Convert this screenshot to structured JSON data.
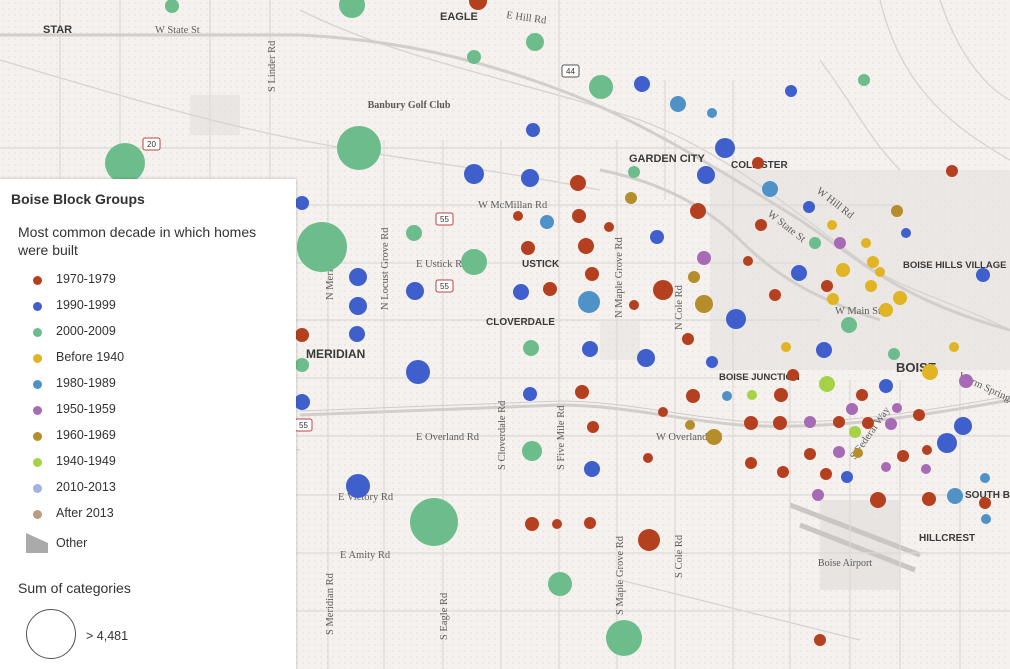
{
  "legend": {
    "title": "Boise Block Groups",
    "subtitle": "Most common decade in which homes were built",
    "categories": [
      {
        "label": "1970-1979",
        "color": "#b5401f"
      },
      {
        "label": "1990-1999",
        "color": "#3f5fcc"
      },
      {
        "label": "2000-2009",
        "color": "#6dbd8c"
      },
      {
        "label": "Before 1940",
        "color": "#e0b422"
      },
      {
        "label": "1980-1989",
        "color": "#4f92c8"
      },
      {
        "label": "1950-1959",
        "color": "#a66bb4"
      },
      {
        "label": "1960-1969",
        "color": "#b58e2b"
      },
      {
        "label": "1940-1949",
        "color": "#a5d246"
      },
      {
        "label": "2010-2013",
        "color": "#a2b3e3"
      },
      {
        "label": "After 2013",
        "color": "#bd9a80"
      }
    ],
    "other_label": "Other",
    "size_title": "Sum of categories",
    "size_label": "> 4,481"
  },
  "map": {
    "places": [
      "STAR",
      "EAGLE",
      "GARDEN CITY",
      "COLLISTER",
      "USTICK",
      "CLOVERDALE",
      "MERIDIAN",
      "BOISE JUNCTION",
      "BOISE HILLS VILLAGE",
      "BOISE",
      "SOUTH BOISE",
      "HILLCREST"
    ],
    "landmarks": [
      "Banbury Golf Club",
      "Boise Airport"
    ],
    "roads": [
      "W State St",
      "E Hill Rd",
      "S Linder Rd",
      "W McMillan Rd",
      "N Locust Grove Rd",
      "N Meridian Rd",
      "E Ustick Rd",
      "N Maple Grove Rd",
      "N Cole Rd",
      "W Hill Rd",
      "W State St",
      "W Main St",
      "E Overland Rd",
      "W Overland Rd",
      "S Cloverdale Rd",
      "S Five Mile Rd",
      "S Federal Way",
      "E Victory Rd",
      "E Amity Rd",
      "S Meridian Rd",
      "S Eagle Rd",
      "S Maple Grove Rd",
      "S Cole Rd",
      "Warm Springs Ave"
    ],
    "shields": [
      "44",
      "20",
      "55",
      "55",
      "55"
    ]
  }
}
